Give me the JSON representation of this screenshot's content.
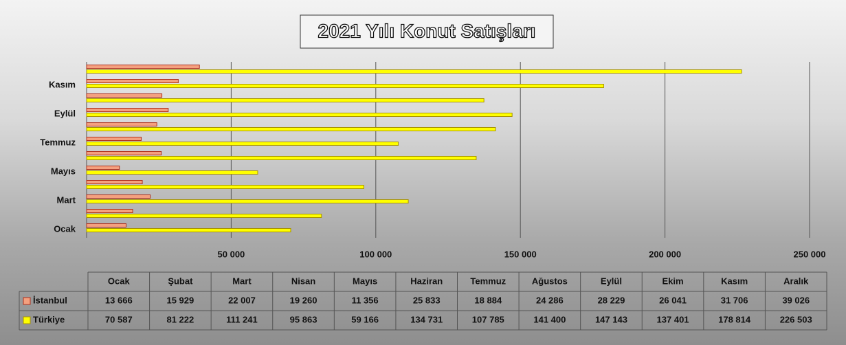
{
  "chart_data": {
    "type": "bar",
    "orientation": "horizontal",
    "title": "2021 Yılı Konut Satışları",
    "categories": [
      "Ocak",
      "Şubat",
      "Mart",
      "Nisan",
      "Mayıs",
      "Haziran",
      "Temmuz",
      "Ağustos",
      "Eylül",
      "Ekim",
      "Kasım",
      "Aralık"
    ],
    "series": [
      {
        "name": "İstanbul",
        "color": "#f4a07f",
        "values": [
          13666,
          15929,
          22007,
          19260,
          11356,
          25833,
          18884,
          24286,
          28229,
          26041,
          31706,
          39026
        ],
        "value_labels": [
          "13 666",
          "15 929",
          "22 007",
          "19 260",
          "11 356",
          "25 833",
          "18 884",
          "24 286",
          "28 229",
          "26 041",
          "31 706",
          "39 026"
        ]
      },
      {
        "name": "Türkiye",
        "color": "#ffff00",
        "values": [
          70587,
          81222,
          111241,
          95863,
          59166,
          134731,
          107785,
          141400,
          147143,
          137401,
          178814,
          226503
        ],
        "value_labels": [
          "70 587",
          "81 222",
          "111 241",
          "95 863",
          "59 166",
          "134 731",
          "107 785",
          "141 400",
          "147 143",
          "137 401",
          "178 814",
          "226 503"
        ]
      }
    ],
    "xlim": [
      0,
      250000
    ],
    "xticks": [
      {
        "value": 50000,
        "label": "50 000"
      },
      {
        "value": 100000,
        "label": "100 000"
      },
      {
        "value": 150000,
        "label": "150 000"
      },
      {
        "value": 200000,
        "label": "200 000"
      },
      {
        "value": 250000,
        "label": "250 000"
      }
    ],
    "grid": true
  }
}
